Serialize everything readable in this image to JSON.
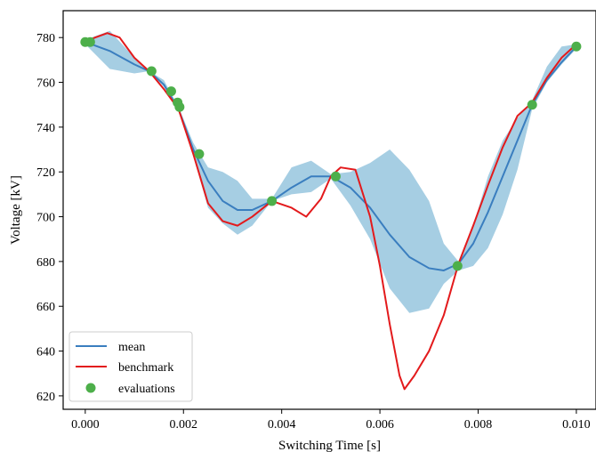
{
  "chart_data": {
    "type": "line",
    "xlabel": "Switching Time [s]",
    "ylabel": "Voltage [kV]",
    "xlim": [
      -0.00045,
      0.0104
    ],
    "ylim": [
      614,
      792
    ],
    "xticks": [
      0.0,
      0.002,
      0.004,
      0.006,
      0.008,
      0.01
    ],
    "xtick_labels": [
      "0.000",
      "0.002",
      "0.004",
      "0.006",
      "0.008",
      "0.010"
    ],
    "yticks": [
      620,
      640,
      660,
      680,
      700,
      720,
      740,
      760,
      780
    ],
    "ytick_labels": [
      "620",
      "640",
      "660",
      "680",
      "700",
      "720",
      "740",
      "760",
      "780"
    ],
    "legend_position": "lower-left",
    "grid": false,
    "series": [
      {
        "name": "mean",
        "kind": "line",
        "color": "#3a7ebf",
        "x": [
          0.0,
          0.0005,
          0.001,
          0.0013,
          0.0016,
          0.0019,
          0.0022,
          0.0025,
          0.0028,
          0.0031,
          0.0034,
          0.0038,
          0.0042,
          0.0046,
          0.005,
          0.0054,
          0.0058,
          0.0062,
          0.0066,
          0.007,
          0.0073,
          0.0076,
          0.0079,
          0.0082,
          0.0085,
          0.0088,
          0.0091,
          0.0094,
          0.0097,
          0.01
        ],
        "y": [
          778,
          774,
          768,
          765,
          759,
          748,
          730,
          716,
          707,
          703,
          703,
          707,
          713,
          718,
          718,
          713,
          704,
          692,
          682,
          677,
          676,
          679,
          688,
          702,
          718,
          734,
          750,
          761,
          769,
          776
        ]
      },
      {
        "name": "uncertainty band",
        "kind": "band",
        "color": "#a6cee3",
        "x": [
          0.0,
          0.0005,
          0.001,
          0.0013,
          0.0016,
          0.0019,
          0.0022,
          0.0025,
          0.0028,
          0.0031,
          0.0034,
          0.0038,
          0.0042,
          0.0046,
          0.005,
          0.0054,
          0.0058,
          0.0062,
          0.0066,
          0.007,
          0.0073,
          0.0076,
          0.0079,
          0.0082,
          0.0085,
          0.0088,
          0.0091,
          0.0094,
          0.0097,
          0.01
        ],
        "lower": [
          777,
          766,
          764,
          765,
          758,
          748,
          727,
          704,
          697,
          692,
          696,
          707,
          710,
          711,
          717,
          705,
          690,
          668,
          657,
          659,
          670,
          676,
          678,
          686,
          701,
          721,
          748,
          760,
          768,
          775
        ],
        "upper": [
          779,
          783,
          771,
          765,
          761,
          749,
          733,
          722,
          720,
          716,
          708,
          708,
          722,
          725,
          719,
          720,
          724,
          730,
          721,
          707,
          688,
          680,
          696,
          718,
          734,
          744,
          752,
          767,
          776,
          777
        ]
      },
      {
        "name": "benchmark",
        "kind": "line",
        "color": "#e31a1c",
        "x": [
          0.0,
          0.0002,
          0.00045,
          0.0007,
          0.001,
          0.0013,
          0.0016,
          0.0019,
          0.0022,
          0.0025,
          0.0028,
          0.0031,
          0.0034,
          0.0038,
          0.0042,
          0.0045,
          0.0048,
          0.005,
          0.0052,
          0.0055,
          0.0058,
          0.006,
          0.0062,
          0.0064,
          0.0065,
          0.0067,
          0.007,
          0.0073,
          0.0076,
          0.0079,
          0.0082,
          0.0085,
          0.0088,
          0.0091,
          0.0094,
          0.0097,
          0.01
        ],
        "y": [
          778,
          780,
          782,
          780,
          771,
          765,
          757,
          748,
          728,
          706,
          698,
          696,
          700,
          707,
          704,
          700,
          708,
          718,
          722,
          721,
          700,
          678,
          652,
          629,
          623,
          629,
          640,
          656,
          679,
          696,
          714,
          731,
          745,
          751,
          762,
          771,
          777
        ]
      },
      {
        "name": "evaluations",
        "kind": "scatter",
        "color": "#4daf4a",
        "x": [
          0.0,
          0.0001,
          0.00135,
          0.00175,
          0.00188,
          0.00192,
          0.00232,
          0.0038,
          0.0051,
          0.00758,
          0.0091,
          0.01
        ],
        "y": [
          778,
          778,
          765,
          756,
          751,
          749,
          728,
          707,
          718,
          678,
          750,
          776
        ]
      }
    ],
    "legend": [
      "mean",
      "benchmark",
      "evaluations"
    ]
  }
}
